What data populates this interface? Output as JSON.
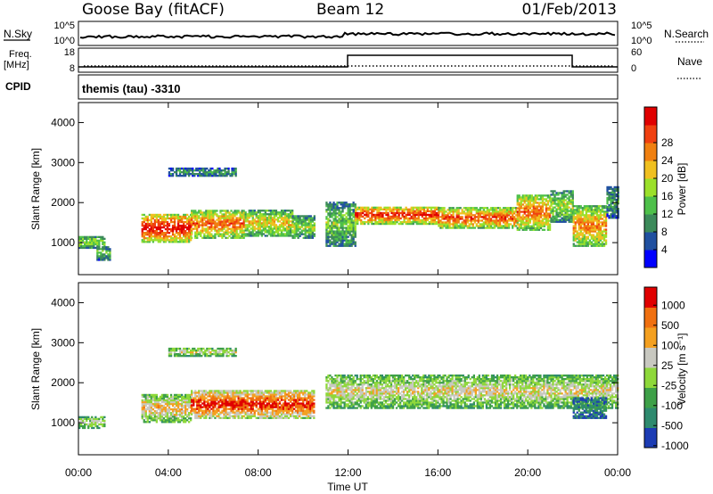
{
  "header": {
    "station": "Goose Bay (fitACF)",
    "beam": "Beam 12",
    "date": "01/Feb/2013"
  },
  "top_panels": {
    "nsky_label": "N.Sky",
    "nsky_ticks": [
      "10^5",
      "10^0"
    ],
    "nsearch_label": "N.Search",
    "freq_label_1": "Freq.",
    "freq_label_2": "[MHz]",
    "freq_ticks": [
      "18",
      "8"
    ],
    "nave_label": "Nave",
    "nave_ticks": [
      "60",
      "0"
    ],
    "cpid_label": "CPID",
    "cpid_text": "themis (tau) -3310"
  },
  "chart_data": [
    {
      "type": "heatmap",
      "title": "",
      "ylabel": "Slant Range [km]",
      "xlabel": "",
      "ylim": [
        200,
        4500
      ],
      "yticks": [
        "1000",
        "2000",
        "3000",
        "4000"
      ],
      "xlim_hours": [
        0,
        24
      ],
      "colorbar_label": "Power [dB]",
      "colorbar_ticks": [
        "4",
        "8",
        "12",
        "16",
        "20",
        "24",
        "28"
      ],
      "colors": [
        "#0000ff",
        "#2050a0",
        "#3c8a5a",
        "#4ec04a",
        "#9be02a",
        "#f0c020",
        "#f08010",
        "#f04010",
        "#e00000"
      ],
      "bands": [
        {
          "t0": 0.0,
          "t1": 1.2,
          "r0": 850,
          "r1": 1150,
          "level": 0.45
        },
        {
          "t0": 0.8,
          "t1": 1.4,
          "r0": 550,
          "r1": 900,
          "level": 0.35
        },
        {
          "t0": 2.8,
          "t1": 5.0,
          "r0": 1000,
          "r1": 1700,
          "level": 0.85
        },
        {
          "t0": 5.0,
          "t1": 7.4,
          "r0": 1100,
          "r1": 1800,
          "level": 0.7
        },
        {
          "t0": 7.4,
          "t1": 9.5,
          "r0": 1150,
          "r1": 1800,
          "level": 0.55
        },
        {
          "t0": 9.5,
          "t1": 10.5,
          "r0": 1100,
          "r1": 1650,
          "level": 0.45
        },
        {
          "t0": 4.0,
          "t1": 7.0,
          "r0": 2650,
          "r1": 2850,
          "level": 0.3
        },
        {
          "t0": 11.0,
          "t1": 12.3,
          "r0": 900,
          "r1": 2000,
          "level": 0.4
        },
        {
          "t0": 12.3,
          "t1": 16.0,
          "r0": 1450,
          "r1": 1900,
          "level": 0.8
        },
        {
          "t0": 16.0,
          "t1": 19.5,
          "r0": 1350,
          "r1": 1850,
          "level": 0.75
        },
        {
          "t0": 19.5,
          "t1": 21.0,
          "r0": 1300,
          "r1": 2200,
          "level": 0.7
        },
        {
          "t0": 21.0,
          "t1": 22.0,
          "r0": 1500,
          "r1": 2300,
          "level": 0.45
        },
        {
          "t0": 22.0,
          "t1": 23.5,
          "r0": 900,
          "r1": 1900,
          "level": 0.65
        },
        {
          "t0": 23.5,
          "t1": 24.0,
          "r0": 1600,
          "r1": 2400,
          "level": 0.3
        }
      ]
    },
    {
      "type": "heatmap",
      "title": "",
      "ylabel": "Slant Range [km]",
      "xlabel": "Time UT",
      "ylim": [
        200,
        4500
      ],
      "yticks": [
        "1000",
        "2000",
        "3000",
        "4000"
      ],
      "xticks": [
        "00:00",
        "04:00",
        "08:00",
        "12:00",
        "16:00",
        "20:00",
        "00:00"
      ],
      "xlim_hours": [
        0,
        24
      ],
      "colorbar_label": "Velocity [m s⁻¹]",
      "colorbar_ticks": [
        "1000",
        "500",
        "100",
        "25",
        "-25",
        "-100",
        "-500",
        "-1000"
      ],
      "colors": [
        "#1c3cb4",
        "#2e8a6e",
        "#3ea048",
        "#8ed83a",
        "#c8c8c0",
        "#f4a020",
        "#f07010",
        "#e00000"
      ],
      "bands": [
        {
          "t0": 0.0,
          "t1": 1.2,
          "r0": 850,
          "r1": 1150,
          "level": 0.45
        },
        {
          "t0": 2.8,
          "t1": 5.0,
          "r0": 1000,
          "r1": 1700,
          "level": 0.6
        },
        {
          "t0": 5.0,
          "t1": 10.5,
          "r0": 1100,
          "r1": 1800,
          "level": 0.85
        },
        {
          "t0": 4.0,
          "t1": 7.0,
          "r0": 2650,
          "r1": 2850,
          "level": 0.5
        },
        {
          "t0": 11.0,
          "t1": 24.0,
          "r0": 1350,
          "r1": 2200,
          "level": 0.52
        },
        {
          "t0": 22.0,
          "t1": 23.5,
          "r0": 1100,
          "r1": 1600,
          "level": 0.2
        }
      ]
    }
  ]
}
